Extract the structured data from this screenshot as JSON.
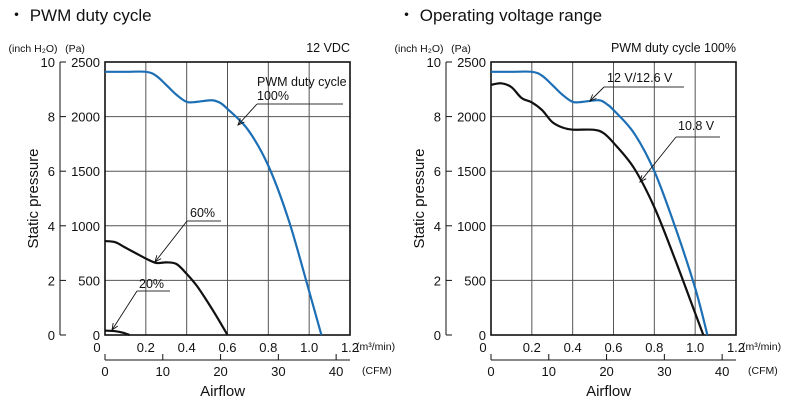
{
  "colors": {
    "blue": "#1d6fb5",
    "black": "#111111",
    "grid": "#555555"
  },
  "chart_data": [
    {
      "type": "line",
      "title": "・ PWM duty cycle",
      "subtitle": "12 VDC",
      "xlabel": "Airflow",
      "ylabel": "Static pressure",
      "x_unit": "(m³/min)",
      "x2_unit": "(CFM)",
      "y_unit": "(Pa)",
      "y2_unit": "(inch H₂O)",
      "xlim": [
        0,
        1.2
      ],
      "ylim": [
        0,
        2500
      ],
      "x2lim": [
        0,
        42.4
      ],
      "y2lim": [
        0,
        10
      ],
      "x_ticks": [
        "0",
        "0.2",
        "0.4",
        "0.6",
        "0.8",
        "1.0",
        "1.2"
      ],
      "x2_ticks": [
        "0",
        "10",
        "20",
        "30",
        "40"
      ],
      "y_ticks": [
        "0",
        "500",
        "1000",
        "1500",
        "2000",
        "2500"
      ],
      "y2_ticks": [
        "0",
        "2",
        "4",
        "6",
        "8",
        "10"
      ],
      "grid": true,
      "series": [
        {
          "name": "PWM duty cycle 100%",
          "label_lines": [
            "PWM duty cycle",
            "100%"
          ],
          "color": "blue",
          "x": [
            0,
            0.1,
            0.2,
            0.25,
            0.3,
            0.35,
            0.4,
            0.45,
            0.52,
            0.56,
            0.6,
            0.7,
            0.8,
            0.9,
            1.0,
            1.06
          ],
          "y": [
            2410,
            2410,
            2410,
            2375,
            2290,
            2200,
            2135,
            2135,
            2150,
            2130,
            2070,
            1880,
            1550,
            1050,
            400,
            0
          ]
        },
        {
          "name": "60%",
          "label_lines": [
            "60%"
          ],
          "color": "black",
          "x": [
            0,
            0.05,
            0.1,
            0.15,
            0.2,
            0.25,
            0.3,
            0.35,
            0.4,
            0.45,
            0.5,
            0.55,
            0.6
          ],
          "y": [
            860,
            850,
            800,
            750,
            700,
            660,
            665,
            650,
            560,
            450,
            310,
            160,
            0
          ]
        },
        {
          "name": "20%",
          "label_lines": [
            "20%"
          ],
          "color": "black",
          "x": [
            0,
            0.05,
            0.09,
            0.12
          ],
          "y": [
            40,
            35,
            20,
            0
          ]
        }
      ]
    },
    {
      "type": "line",
      "title": "・ Operating voltage range",
      "subtitle": "PWM duty cycle 100%",
      "xlabel": "Airflow",
      "ylabel": "Static pressure",
      "x_unit": "(m³/min)",
      "x2_unit": "(CFM)",
      "y_unit": "(Pa)",
      "y2_unit": "(inch H₂O)",
      "xlim": [
        0,
        1.2
      ],
      "ylim": [
        0,
        2500
      ],
      "x2lim": [
        0,
        42.4
      ],
      "y2lim": [
        0,
        10
      ],
      "x_ticks": [
        "0",
        "0.2",
        "0.4",
        "0.6",
        "0.8",
        "1.0",
        "1.2"
      ],
      "x2_ticks": [
        "0",
        "10",
        "20",
        "30",
        "40"
      ],
      "y_ticks": [
        "0",
        "500",
        "1000",
        "1500",
        "2000",
        "2500"
      ],
      "y2_ticks": [
        "0",
        "2",
        "4",
        "6",
        "8",
        "10"
      ],
      "grid": true,
      "series": [
        {
          "name": "12 V/12.6 V",
          "label_lines": [
            "12 V/12.6 V"
          ],
          "color": "blue",
          "x": [
            0,
            0.1,
            0.2,
            0.25,
            0.3,
            0.35,
            0.4,
            0.45,
            0.53,
            0.57,
            0.6,
            0.7,
            0.8,
            0.9,
            1.0,
            1.06
          ],
          "y": [
            2410,
            2410,
            2410,
            2375,
            2290,
            2200,
            2135,
            2135,
            2150,
            2110,
            2060,
            1850,
            1500,
            1000,
            430,
            0
          ]
        },
        {
          "name": "10.8 V",
          "label_lines": [
            "10.8 V"
          ],
          "color": "black",
          "x": [
            0,
            0.05,
            0.1,
            0.15,
            0.2,
            0.25,
            0.3,
            0.35,
            0.4,
            0.5,
            0.55,
            0.6,
            0.7,
            0.8,
            0.9,
            1.0,
            1.04
          ],
          "y": [
            2290,
            2305,
            2270,
            2170,
            2130,
            2060,
            1950,
            1900,
            1880,
            1880,
            1850,
            1760,
            1530,
            1170,
            700,
            200,
            0
          ]
        }
      ]
    }
  ]
}
